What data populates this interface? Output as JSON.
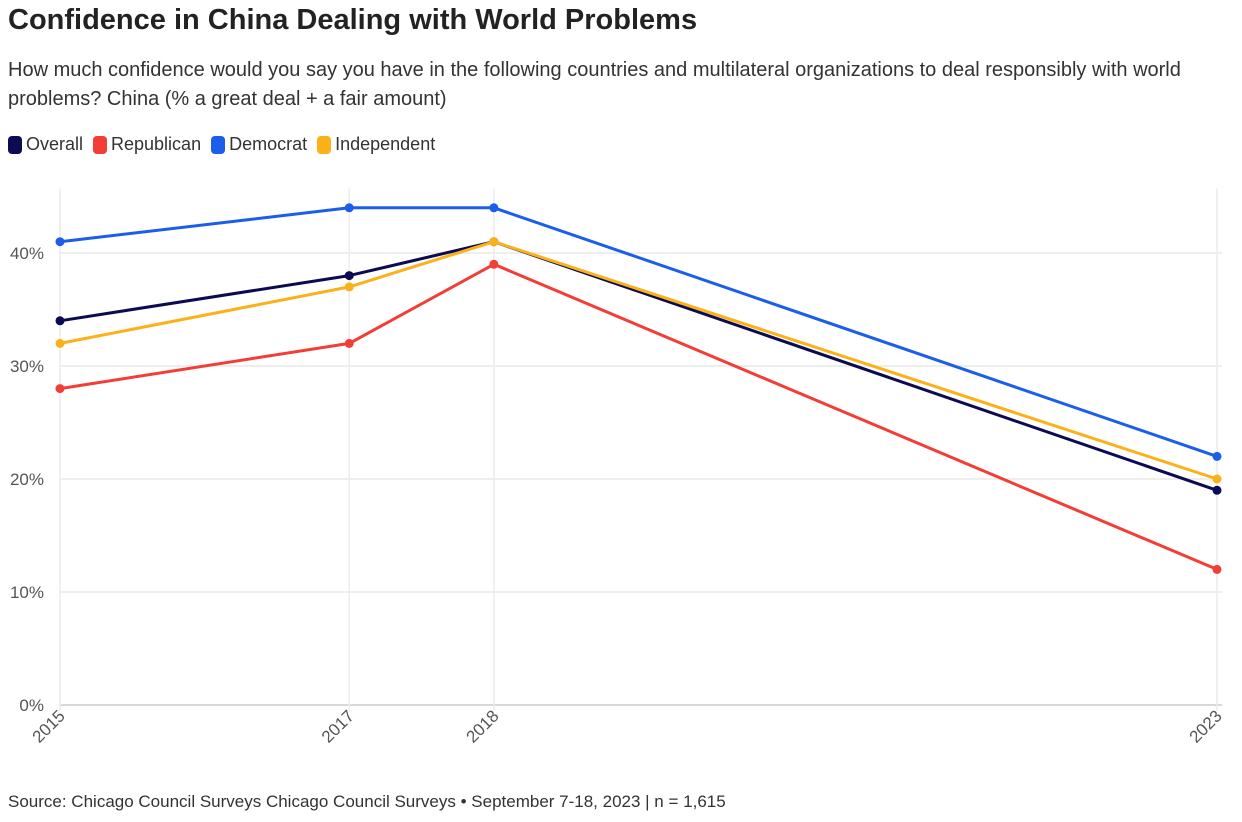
{
  "chart_data": {
    "type": "line",
    "title": "Confidence in China Dealing with World Problems",
    "subtitle": "How much confidence would you say you have in the following countries and multilateral organizations to deal responsibly with world problems? China (% a great deal + a fair amount)",
    "x": [
      2015,
      2017,
      2018,
      2023
    ],
    "x_tick_labels": [
      "2015",
      "2017",
      "2018",
      "2023"
    ],
    "y_ticks": [
      0,
      10,
      20,
      30,
      40
    ],
    "y_tick_labels": [
      "0%",
      "10%",
      "20%",
      "30%",
      "40%"
    ],
    "ylim": [
      0,
      45
    ],
    "xlabel": "",
    "ylabel": "",
    "grid": true,
    "legend_placement": "top-left",
    "series": [
      {
        "name": "Overall",
        "color": "#0c0a52",
        "values": [
          34,
          38,
          41,
          19
        ]
      },
      {
        "name": "Republican",
        "color": "#f33d37",
        "values": [
          28,
          32,
          39,
          12
        ]
      },
      {
        "name": "Democrat",
        "color": "#1b5ee9",
        "values": [
          41,
          44,
          44,
          22
        ]
      },
      {
        "name": "Independent",
        "color": "#fbb11a",
        "values": [
          32,
          37,
          41,
          20
        ]
      }
    ],
    "source": "Source: Chicago Council Surveys Chicago Council Surveys • September 7-18, 2023 | n = 1,615"
  }
}
